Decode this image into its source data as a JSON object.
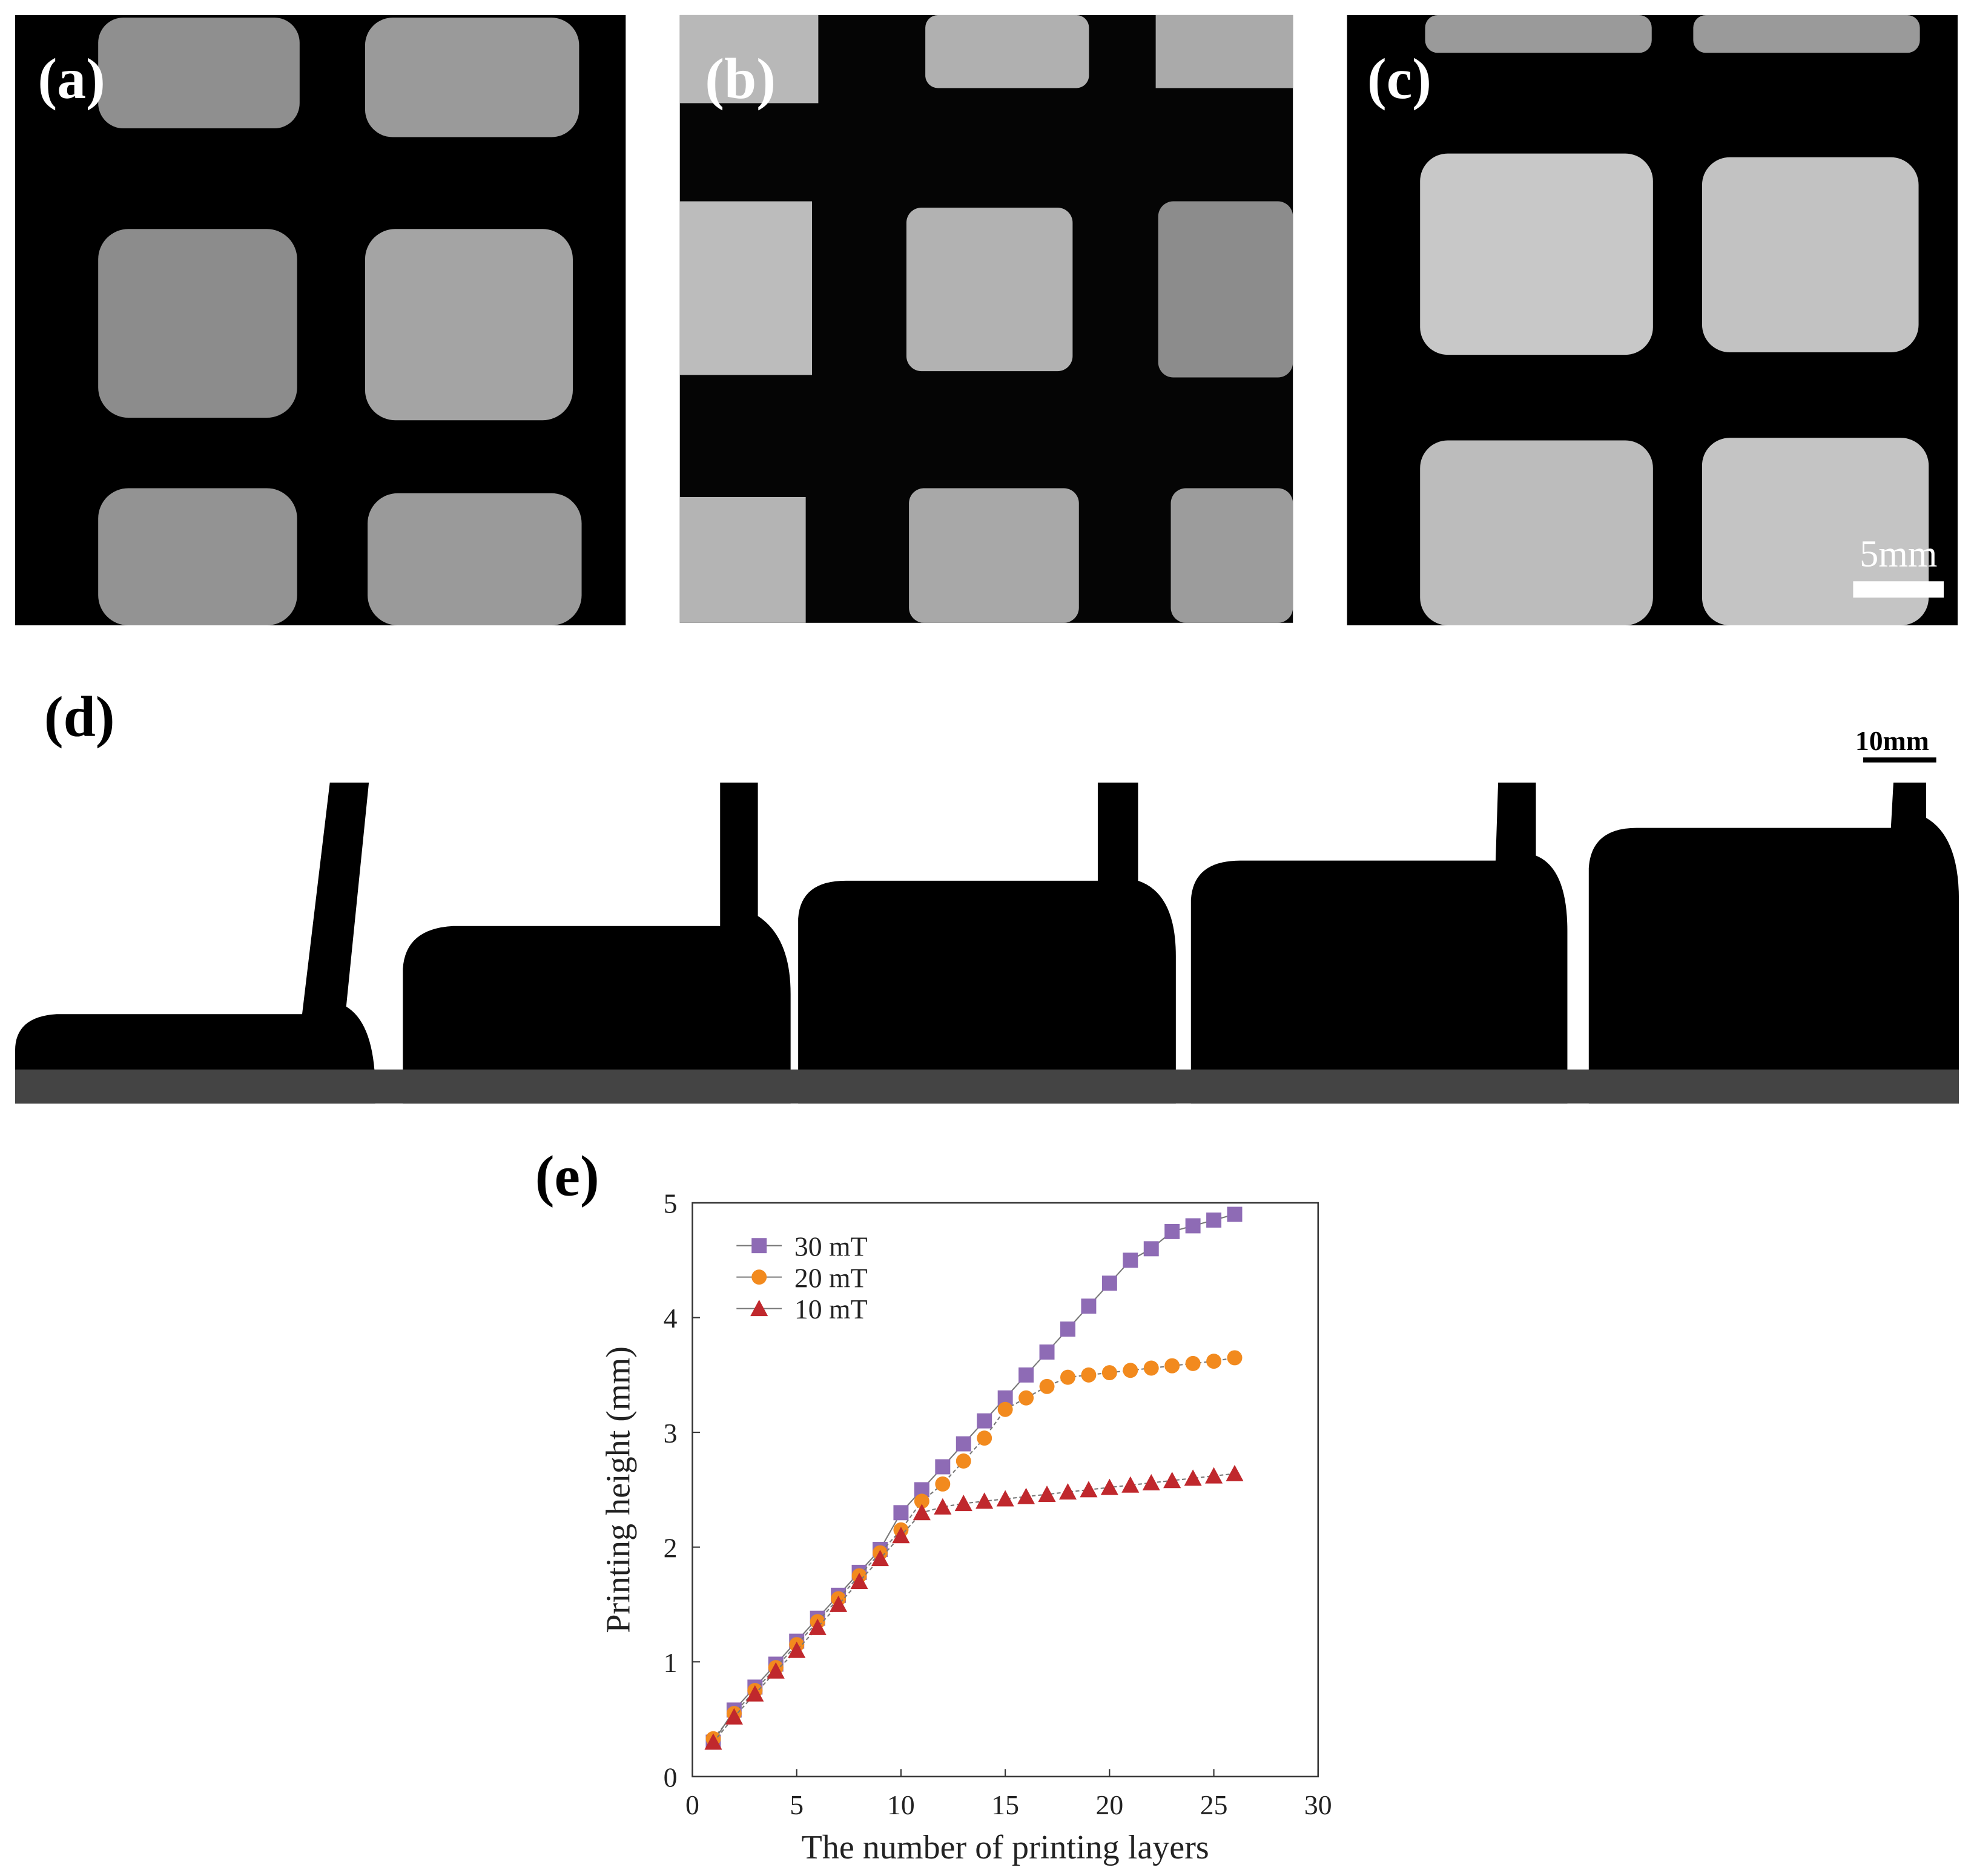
{
  "panels": {
    "a": "(a)",
    "b": "(b)",
    "c": "(c)",
    "d": "(d)",
    "scale_c": "5mm",
    "scale_d": "10mm"
  },
  "chart_data": {
    "type": "line",
    "label": "(e)",
    "x_label": "The number of printing layers",
    "y_label": "Printing height (mm)",
    "x": [
      1,
      2,
      3,
      4,
      5,
      6,
      7,
      8,
      9,
      10,
      11,
      12,
      13,
      14,
      15,
      16,
      17,
      18,
      19,
      20,
      21,
      22,
      23,
      24,
      25,
      26
    ],
    "series": [
      {
        "name": "30 mT",
        "color": "#8e6bb5",
        "marker": "square",
        "values": [
          0.3,
          0.58,
          0.78,
          0.98,
          1.18,
          1.38,
          1.58,
          1.78,
          1.98,
          2.3,
          2.5,
          2.7,
          2.9,
          3.1,
          3.3,
          3.5,
          3.7,
          3.9,
          4.1,
          4.3,
          4.5,
          4.6,
          4.75,
          4.8,
          4.85,
          4.9
        ]
      },
      {
        "name": "20 mT",
        "color": "#f28a1e",
        "marker": "circle",
        "values": [
          0.33,
          0.55,
          0.75,
          0.95,
          1.15,
          1.35,
          1.55,
          1.75,
          1.95,
          2.15,
          2.4,
          2.55,
          2.75,
          2.95,
          3.2,
          3.3,
          3.4,
          3.48,
          3.5,
          3.52,
          3.54,
          3.56,
          3.58,
          3.6,
          3.62,
          3.65
        ]
      },
      {
        "name": "10 mT",
        "color": "#c0282d",
        "marker": "triangle",
        "values": [
          0.3,
          0.52,
          0.72,
          0.92,
          1.1,
          1.3,
          1.5,
          1.7,
          1.9,
          2.1,
          2.3,
          2.35,
          2.38,
          2.4,
          2.42,
          2.44,
          2.46,
          2.48,
          2.5,
          2.52,
          2.54,
          2.56,
          2.58,
          2.6,
          2.62,
          2.64
        ]
      }
    ],
    "xlim": [
      0,
      30
    ],
    "xticks": [
      0,
      5,
      10,
      15,
      20,
      25,
      30
    ],
    "ylim": [
      0,
      5
    ],
    "yticks": [
      0,
      1,
      2,
      3,
      4,
      5
    ],
    "legend": "upper-left",
    "grid": false
  }
}
